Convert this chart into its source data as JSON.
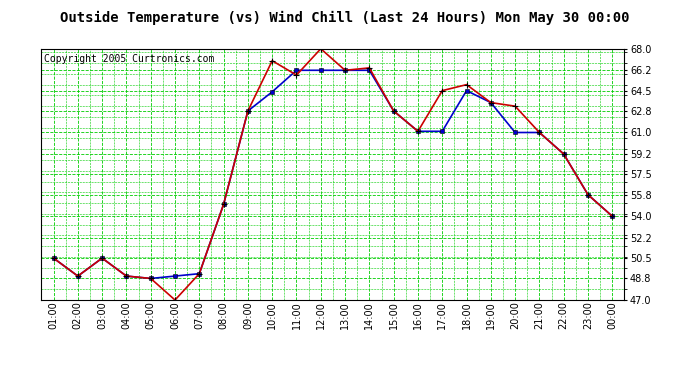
{
  "title": "Outside Temperature (vs) Wind Chill (Last 24 Hours) Mon May 30 00:00",
  "copyright": "Copyright 2005 Curtronics.com",
  "x_labels": [
    "01:00",
    "02:00",
    "03:00",
    "04:00",
    "05:00",
    "06:00",
    "07:00",
    "08:00",
    "09:00",
    "10:00",
    "11:00",
    "12:00",
    "13:00",
    "14:00",
    "15:00",
    "16:00",
    "17:00",
    "18:00",
    "19:00",
    "20:00",
    "21:00",
    "22:00",
    "23:00",
    "00:00"
  ],
  "temp_data": [
    50.5,
    49.0,
    50.5,
    49.0,
    48.8,
    49.0,
    49.2,
    55.0,
    62.8,
    64.4,
    66.2,
    66.2,
    66.2,
    66.2,
    62.8,
    61.1,
    61.1,
    64.5,
    63.5,
    61.0,
    61.0,
    59.2,
    55.8,
    54.0
  ],
  "wind_chill_data": [
    50.5,
    49.0,
    50.5,
    49.0,
    48.8,
    47.0,
    49.2,
    55.0,
    62.8,
    67.0,
    65.8,
    68.0,
    66.2,
    66.4,
    62.8,
    61.1,
    64.5,
    65.0,
    63.5,
    63.2,
    61.0,
    59.2,
    55.8,
    54.0
  ],
  "temp_color": "#0000CC",
  "wind_chill_color": "#CC0000",
  "bg_color": "#ffffff",
  "plot_bg_color": "#ffffff",
  "grid_color": "#00CC00",
  "grid_color_dark": "#008800",
  "ylim": [
    47.0,
    68.0
  ],
  "yticks": [
    47.0,
    48.8,
    50.5,
    52.2,
    54.0,
    55.8,
    57.5,
    59.2,
    61.0,
    62.8,
    64.5,
    66.2,
    68.0
  ],
  "title_fontsize": 10,
  "copyright_fontsize": 7,
  "tick_fontsize": 7
}
